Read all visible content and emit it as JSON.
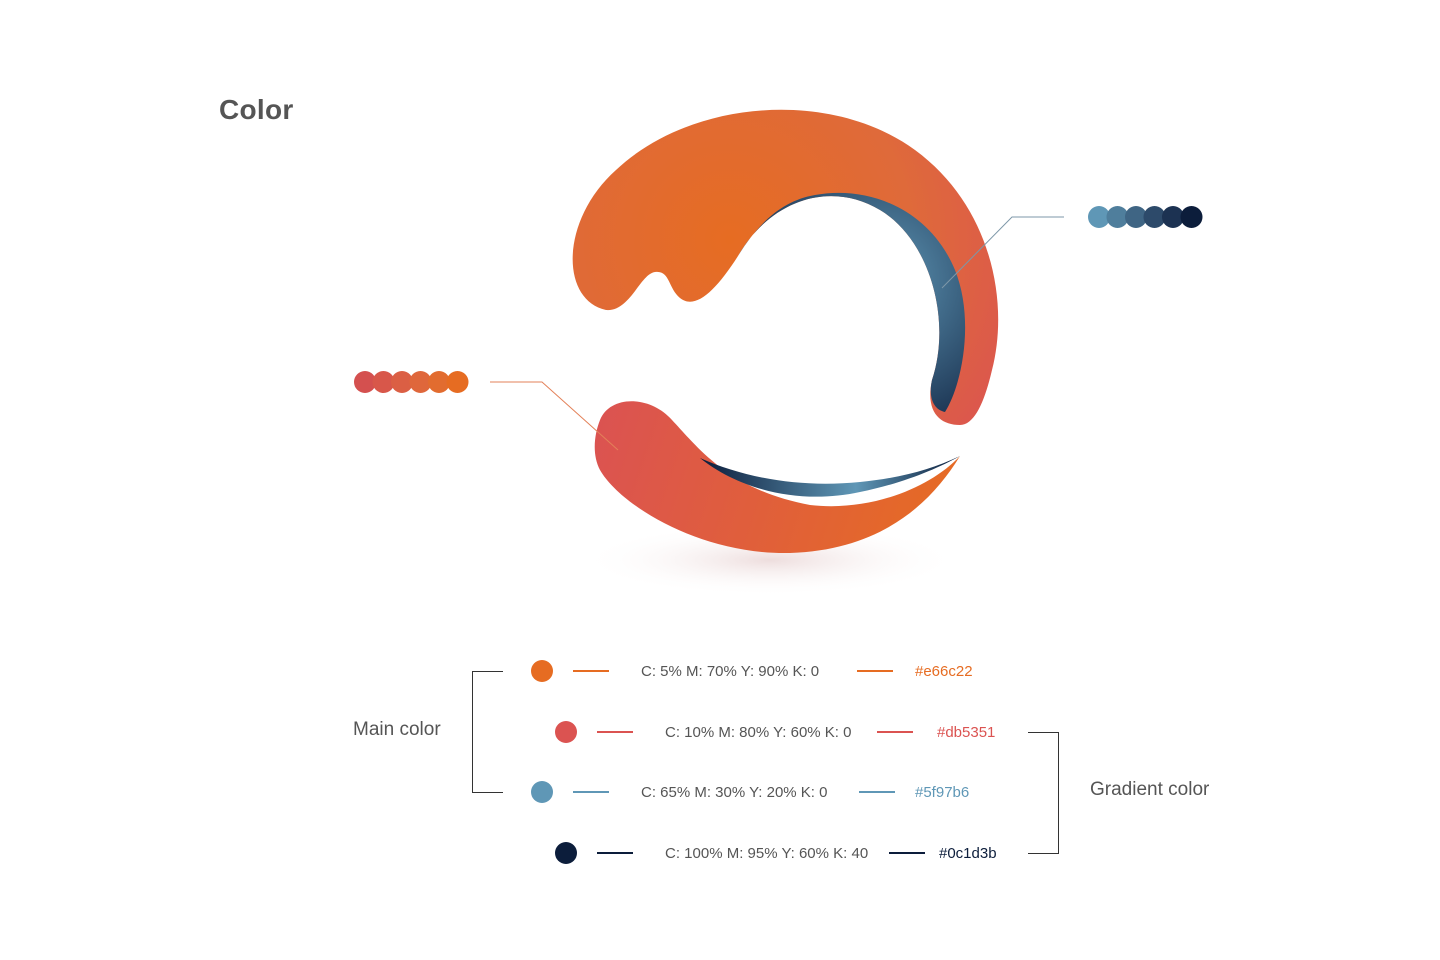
{
  "title": "Color",
  "palettes": {
    "warm": [
      "#d4504f",
      "#d8574a",
      "#db5f44",
      "#df673b",
      "#e26c2f",
      "#e66c22"
    ],
    "cool": [
      "#5f97b6",
      "#4f7e9c",
      "#3f6584",
      "#2d4a6a",
      "#1c3252",
      "#0c1d3b"
    ]
  },
  "gradient_stops": {
    "orange": "#e66c22",
    "red": "#db5351",
    "blue": "#5f97b6",
    "navy": "#0c1d3b"
  },
  "swatches": [
    {
      "name": "orange",
      "color": "#e66c22",
      "cmyk": "C: 5% M: 70% Y: 90% K: 0",
      "hex": "#e66c22"
    },
    {
      "name": "red",
      "color": "#db5351",
      "cmyk": "C: 10% M: 80% Y: 60% K: 0",
      "hex": "#db5351"
    },
    {
      "name": "blue",
      "color": "#5f97b6",
      "cmyk": "C: 65% M: 30% Y: 20% K: 0",
      "hex": "#5f97b6"
    },
    {
      "name": "navy",
      "color": "#0c1d3b",
      "cmyk": "C: 100% M: 95% Y: 60% K: 40",
      "hex": "#0c1d3b"
    }
  ],
  "groups": {
    "main_label": "Main color",
    "gradient_label": "Gradient color"
  }
}
